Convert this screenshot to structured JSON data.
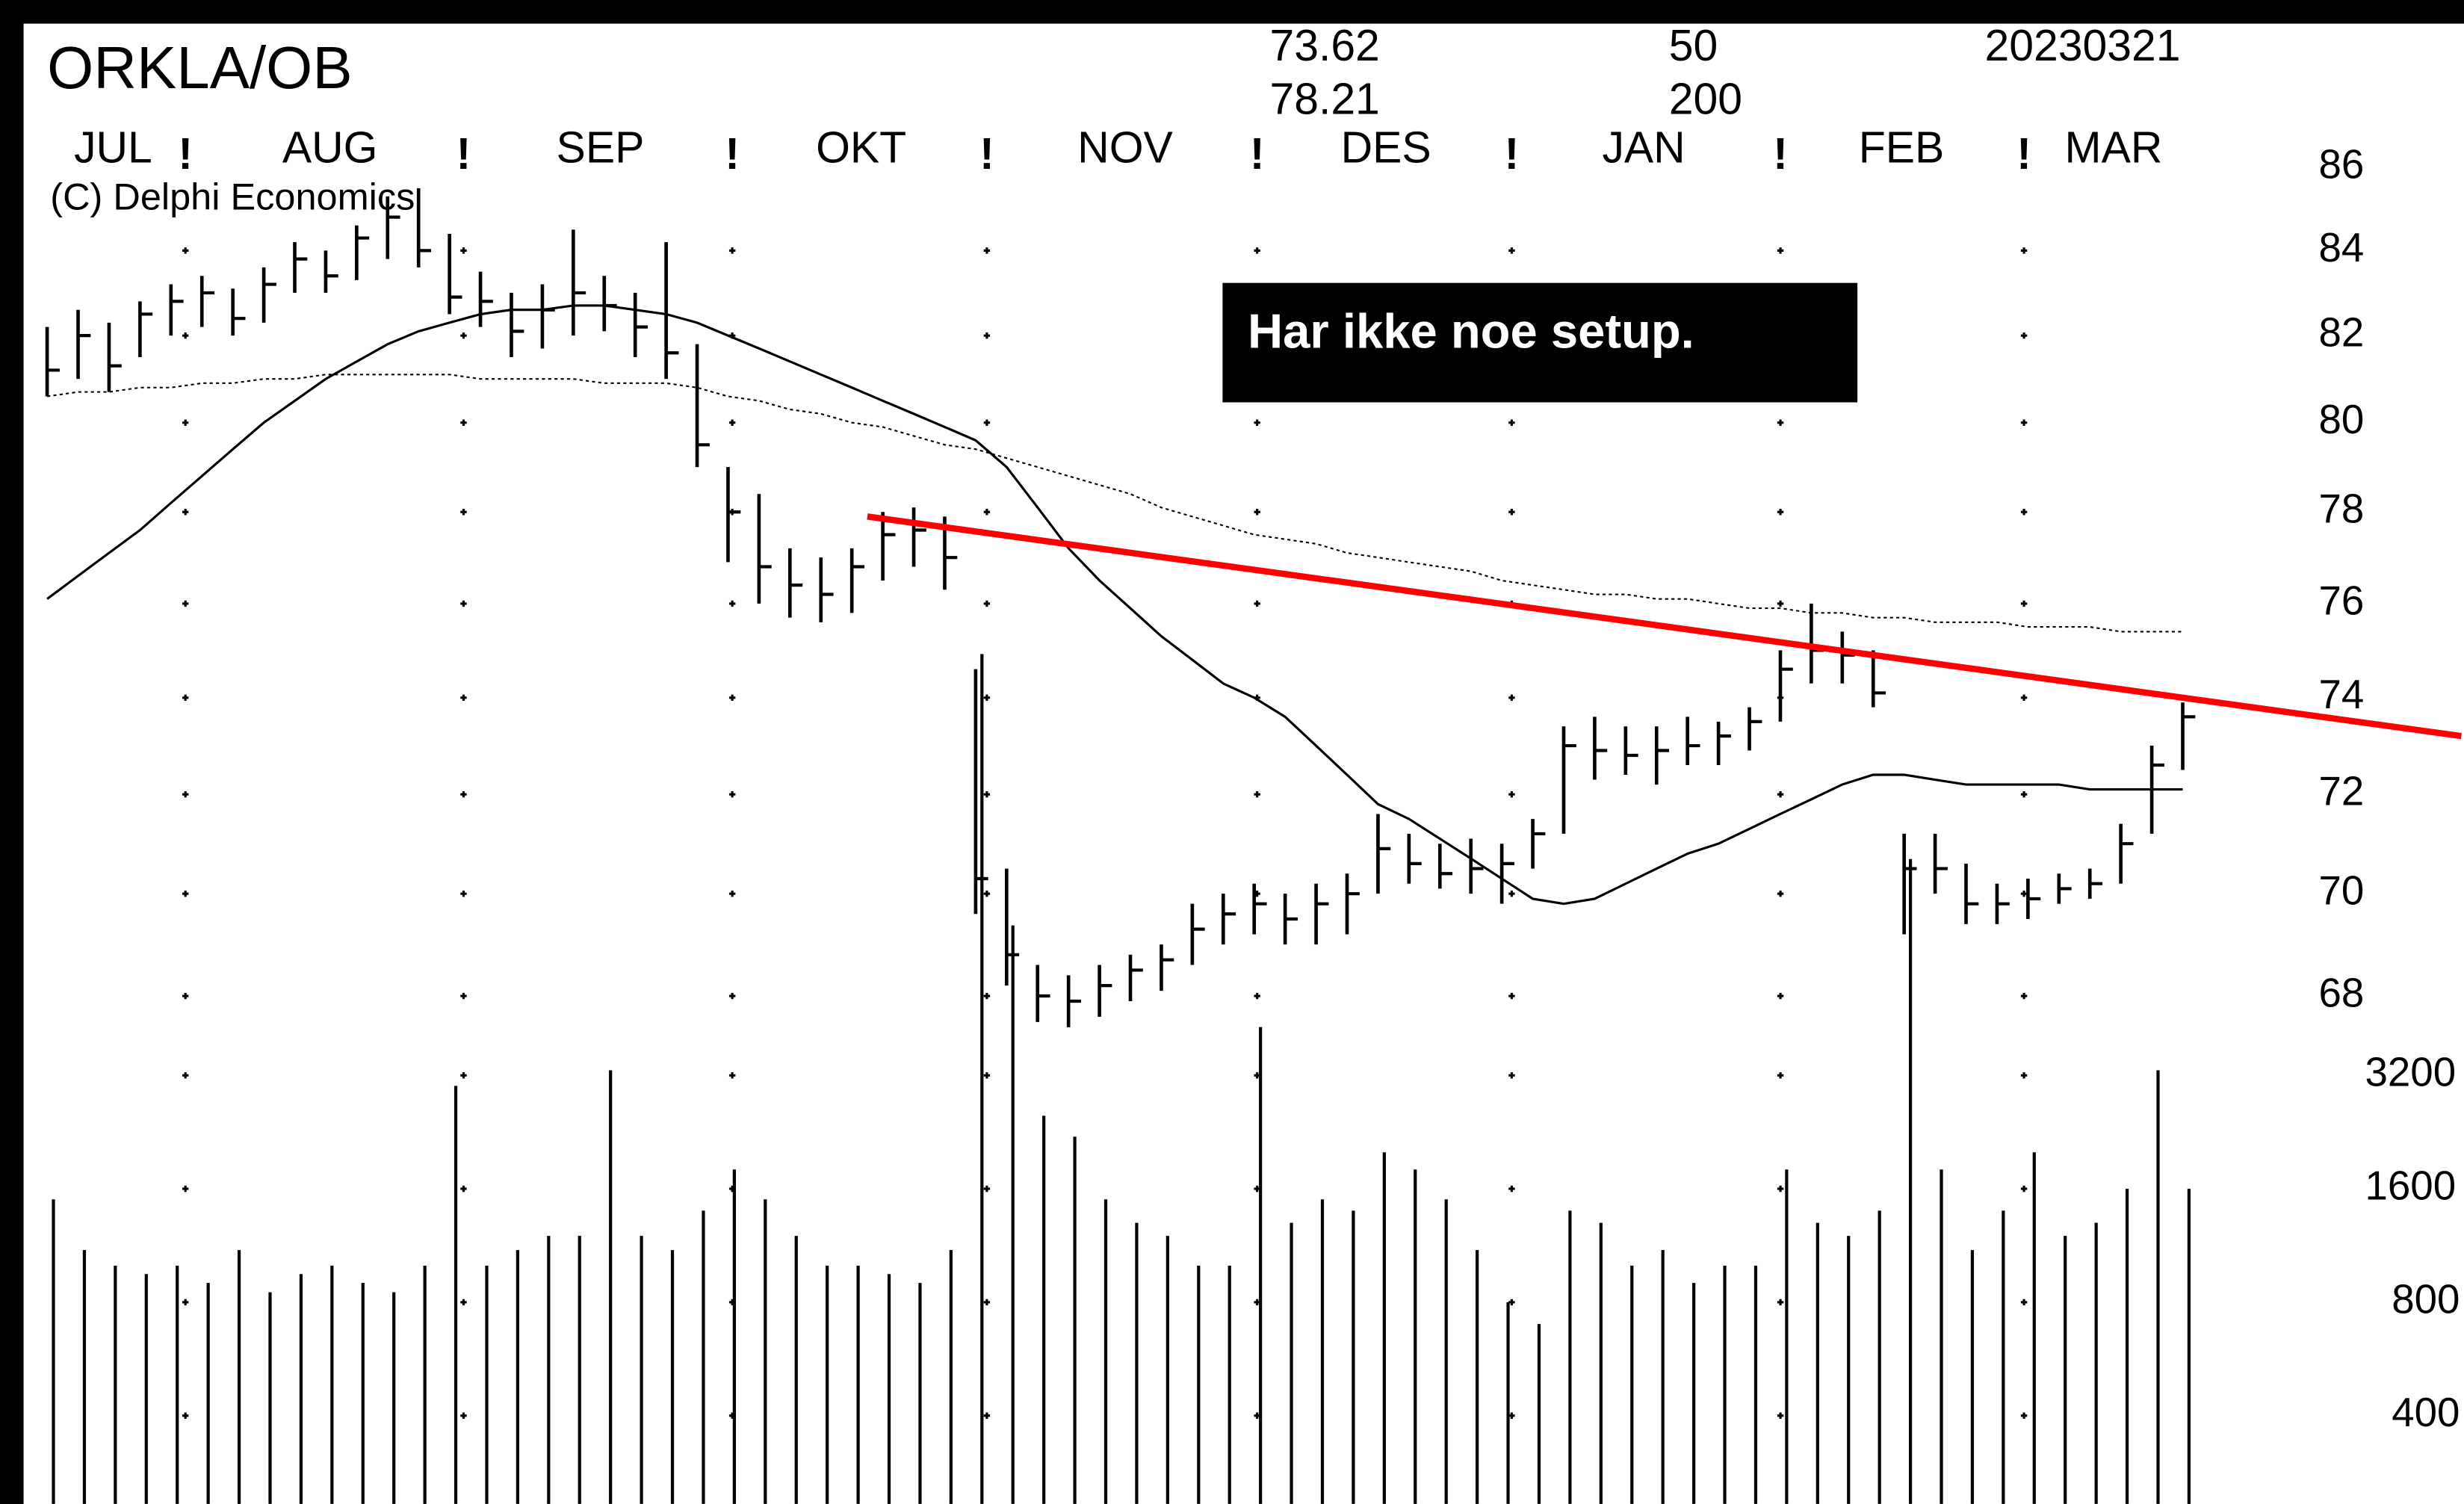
{
  "chart_data": {
    "type": "ohlc",
    "title": "ORKLA/OB",
    "copyright": "(C) Delphi Economics",
    "header_values": [
      "73.62",
      "78.21",
      "50",
      "200",
      "20230321"
    ],
    "annotation": "Har ikke noe setup.",
    "months": [
      "JUL",
      "AUG",
      "SEP",
      "OKT",
      "NOV",
      "DES",
      "JAN",
      "FEB",
      "MAR"
    ],
    "month_separator": "!",
    "log_scale": true,
    "bar_color": "#000000",
    "ylim": [
      67,
      88
    ],
    "yticks": [
      86,
      84,
      82,
      80,
      78,
      76,
      74,
      72,
      70,
      68
    ],
    "high": [
      82.2,
      82.6,
      82.3,
      82.8,
      83.2,
      83.4,
      83.1,
      83.6,
      84.2,
      84.0,
      84.6,
      85.3,
      85.5,
      84.4,
      83.5,
      83.0,
      83.2,
      84.5,
      83.4,
      83.0,
      84.2,
      81.8,
      79.0,
      78.4,
      77.2,
      77.0,
      77.2,
      78.0,
      78.1,
      77.9,
      74.6,
      70.5,
      68.6,
      68.4,
      68.6,
      68.8,
      69.0,
      69.8,
      70.0,
      70.2,
      70.0,
      70.2,
      70.4,
      71.6,
      71.2,
      71.0,
      71.1,
      71.0,
      71.5,
      73.4,
      73.6,
      73.4,
      73.4,
      73.6,
      73.5,
      73.8,
      75.0,
      76.0,
      75.4,
      75.0,
      71.2,
      71.2,
      70.6,
      70.2,
      70.3,
      70.4,
      70.5,
      71.4,
      73.0,
      73.9
    ],
    "low": [
      80.6,
      81.0,
      80.7,
      81.5,
      82.0,
      82.2,
      82.0,
      82.3,
      83.0,
      83.0,
      83.3,
      83.8,
      83.6,
      82.5,
      82.2,
      81.5,
      81.7,
      82.0,
      82.1,
      81.5,
      81.0,
      79.0,
      76.9,
      76.0,
      75.7,
      75.6,
      75.8,
      76.5,
      76.8,
      76.3,
      69.6,
      68.2,
      67.5,
      67.4,
      67.6,
      67.9,
      68.1,
      68.6,
      69.0,
      69.2,
      69.0,
      69.0,
      69.2,
      70.0,
      70.2,
      70.1,
      70.0,
      69.8,
      70.5,
      71.2,
      72.3,
      72.4,
      72.2,
      72.6,
      72.6,
      72.9,
      73.5,
      74.3,
      74.3,
      73.8,
      69.2,
      70.0,
      69.4,
      69.4,
      69.5,
      69.8,
      69.9,
      70.2,
      71.2,
      72.5
    ],
    "close": [
      81.2,
      82.0,
      81.3,
      82.5,
      82.8,
      83.0,
      82.4,
      83.2,
      83.8,
      83.4,
      84.3,
      84.8,
      84.0,
      82.9,
      82.8,
      82.1,
      82.6,
      83.0,
      82.7,
      82.2,
      81.6,
      79.5,
      78.0,
      76.8,
      76.4,
      76.2,
      76.8,
      77.5,
      77.6,
      77.0,
      70.3,
      68.8,
      68.0,
      67.9,
      68.2,
      68.5,
      68.7,
      69.3,
      69.6,
      69.8,
      69.5,
      69.8,
      70.0,
      70.9,
      70.6,
      70.4,
      70.5,
      70.6,
      71.2,
      73.0,
      72.9,
      72.8,
      72.9,
      73.0,
      73.2,
      73.5,
      74.6,
      75.0,
      74.9,
      74.1,
      70.5,
      70.5,
      69.8,
      69.8,
      69.9,
      70.1,
      70.2,
      71.0,
      72.6,
      73.6
    ],
    "ma_series": [
      {
        "color": "#000000",
        "dashed": false,
        "values": [
          76.1,
          76.6,
          77.1,
          77.6,
          78.2,
          78.8,
          79.4,
          80.0,
          80.5,
          81.0,
          81.4,
          81.8,
          82.1,
          82.3,
          82.5,
          82.6,
          82.6,
          82.7,
          82.7,
          82.6,
          82.5,
          82.3,
          82.0,
          81.7,
          81.4,
          81.1,
          80.8,
          80.5,
          80.2,
          79.9,
          79.6,
          79.0,
          78.1,
          77.2,
          76.5,
          75.9,
          75.3,
          74.8,
          74.3,
          74.0,
          73.6,
          73.0,
          72.4,
          71.8,
          71.5,
          71.1,
          70.7,
          70.3,
          69.9,
          69.8,
          69.9,
          70.2,
          70.5,
          70.8,
          71.0,
          71.3,
          71.6,
          71.9,
          72.2,
          72.4,
          72.4,
          72.3,
          72.2,
          72.2,
          72.2,
          72.2,
          72.1,
          72.1,
          72.1,
          72.1
        ]
      },
      {
        "color": "#000000",
        "dashed": true,
        "values": [
          80.6,
          80.7,
          80.7,
          80.8,
          80.8,
          80.9,
          80.9,
          81.0,
          81.0,
          81.1,
          81.1,
          81.1,
          81.1,
          81.1,
          81.0,
          81.0,
          81.0,
          81.0,
          80.9,
          80.9,
          80.9,
          80.8,
          80.6,
          80.5,
          80.3,
          80.2,
          80.0,
          79.9,
          79.7,
          79.5,
          79.4,
          79.2,
          79.0,
          78.8,
          78.6,
          78.4,
          78.1,
          77.9,
          77.7,
          77.5,
          77.4,
          77.3,
          77.1,
          77.0,
          76.9,
          76.8,
          76.7,
          76.5,
          76.4,
          76.3,
          76.2,
          76.2,
          76.1,
          76.1,
          76.0,
          75.9,
          75.9,
          75.8,
          75.8,
          75.7,
          75.7,
          75.6,
          75.6,
          75.6,
          75.5,
          75.5,
          75.5,
          75.4,
          75.4,
          75.4
        ]
      }
    ],
    "trendline": {
      "color": "#ff0000",
      "x": [
        26.5,
        78
      ],
      "values": [
        77.9,
        73.2
      ]
    },
    "volume": [
      1500,
      1100,
      1000,
      950,
      1000,
      900,
      1100,
      850,
      950,
      1000,
      900,
      850,
      1000,
      3000,
      1000,
      1100,
      1200,
      1200,
      3300,
      1200,
      1100,
      1400,
      1800,
      1500,
      1200,
      1000,
      1000,
      950,
      900,
      1100,
      42000,
      8000,
      2500,
      2200,
      1500,
      1300,
      1200,
      1000,
      1000,
      4300,
      1300,
      1500,
      1400,
      2000,
      1800,
      1500,
      1100,
      800,
      700,
      1400,
      1300,
      1000,
      1100,
      900,
      1000,
      1000,
      1800,
      1300,
      1200,
      1400,
      12000,
      1800,
      1100,
      1400,
      2000,
      1200,
      1300,
      1600,
      3300,
      1600
    ],
    "vlim": [
      240,
      3600
    ],
    "vticks": [
      3200,
      1600,
      800,
      400
    ]
  }
}
